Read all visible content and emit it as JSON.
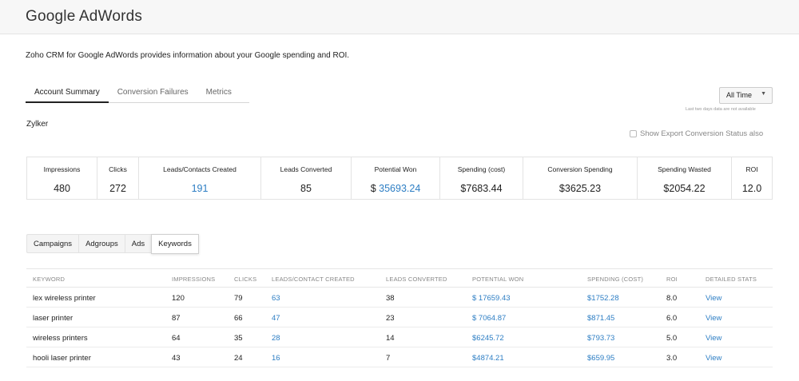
{
  "app": {
    "title": "Google AdWords"
  },
  "intro": "Zoho CRM for Google AdWords provides information about your Google spending and ROI.",
  "main_tabs": [
    "Account Summary",
    "Conversion Failures",
    "Metrics"
  ],
  "time_filter": {
    "value": "All Time",
    "note": "Last two days data are not available"
  },
  "account": "Zylker",
  "export_label": "Show Export Conversion Status also",
  "summary": [
    {
      "label": "Impressions",
      "value": "480"
    },
    {
      "label": "Clicks",
      "value": "272"
    },
    {
      "label": "Leads/Contacts Created",
      "value": "191"
    },
    {
      "label": "Leads Converted",
      "value": "85"
    },
    {
      "label": "Potential Won",
      "currency": "$ ",
      "value": "35693.24"
    },
    {
      "label": "Spending (cost)",
      "value": "$7683.44"
    },
    {
      "label": "Conversion Spending",
      "value": "$3625.23"
    },
    {
      "label": "Spending Wasted",
      "value": "$2054.22"
    },
    {
      "label": "ROI",
      "value": "12.0"
    }
  ],
  "sub_tabs": [
    "Campaigns",
    "Adgroups",
    "Ads",
    "Keywords"
  ],
  "table": {
    "headers": [
      "KEYWORD",
      "IMPRESSIONS",
      "CLICKS",
      "LEADS/CONTACT CREATED",
      "LEADS CONVERTED",
      "POTENTIAL WON",
      "SPENDING (COST)",
      "ROI",
      "DETAILED STATS"
    ],
    "rows": [
      [
        "lex wireless printer",
        "120",
        "79",
        "63",
        "38",
        "$ 17659.43",
        "$1752.28",
        "8.0",
        "View"
      ],
      [
        "laser printer",
        "87",
        "66",
        "47",
        "23",
        "$ 7064.87",
        "$871.45",
        "6.0",
        "View"
      ],
      [
        "wireless printers",
        "64",
        "35",
        "28",
        "14",
        "$6245.72",
        "$793.73",
        "5.0",
        "View"
      ],
      [
        "hooli laser printer",
        "43",
        "24",
        "16",
        "7",
        "$4874.21",
        "$659.95",
        "3.0",
        "View"
      ]
    ]
  },
  "colors": {
    "link": "#2d7ec4",
    "header_bg": "#f7f7f7"
  }
}
